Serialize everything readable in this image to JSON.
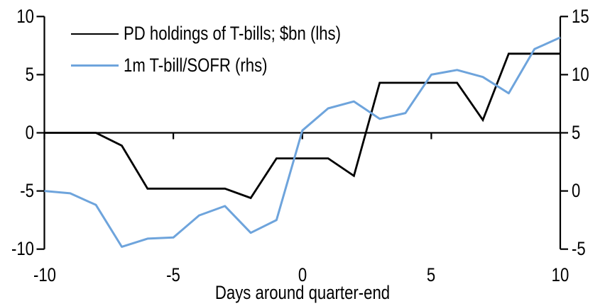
{
  "chart_data": {
    "type": "line",
    "title": "",
    "xlabel": "Days around quarter-end",
    "x": [
      -10,
      -9,
      -8,
      -7,
      -6,
      -5,
      -4,
      -3,
      -2,
      -1,
      0,
      1,
      2,
      3,
      4,
      5,
      6,
      7,
      8,
      9,
      10
    ],
    "series": [
      {
        "name": "PD holdings of T-bills; $bn (lhs)",
        "axis": "left",
        "color": "#000000",
        "values": [
          0,
          0,
          0,
          -1.1,
          -4.8,
          -4.8,
          -4.8,
          -4.8,
          -5.6,
          -2.2,
          -2.2,
          -2.2,
          -3.7,
          4.3,
          4.3,
          4.3,
          4.3,
          1.1,
          6.8,
          6.8,
          6.8
        ]
      },
      {
        "name": "1m T-bill/SOFR (rhs)",
        "axis": "right",
        "color": "#6ea4dc",
        "values": [
          0,
          -0.2,
          -1.2,
          -4.8,
          -4.1,
          -4.0,
          -2.1,
          -1.3,
          -3.6,
          -2.5,
          5.2,
          7.1,
          7.7,
          6.2,
          6.7,
          10.0,
          10.4,
          9.8,
          8.4,
          12.2,
          13.2
        ]
      }
    ],
    "left_axis": {
      "ticks": [
        10,
        5,
        0,
        -5,
        -10
      ],
      "range": [
        -10,
        10
      ]
    },
    "right_axis": {
      "ticks": [
        15,
        10,
        5,
        0,
        -5
      ],
      "range": [
        -5,
        15
      ]
    },
    "x_axis": {
      "ticks": [
        -10,
        -5,
        0,
        5,
        10
      ],
      "range": [
        -10,
        10
      ]
    },
    "grid": false,
    "legend_position": "top-left",
    "background": "#ffffff",
    "axis_color": "#000000"
  }
}
